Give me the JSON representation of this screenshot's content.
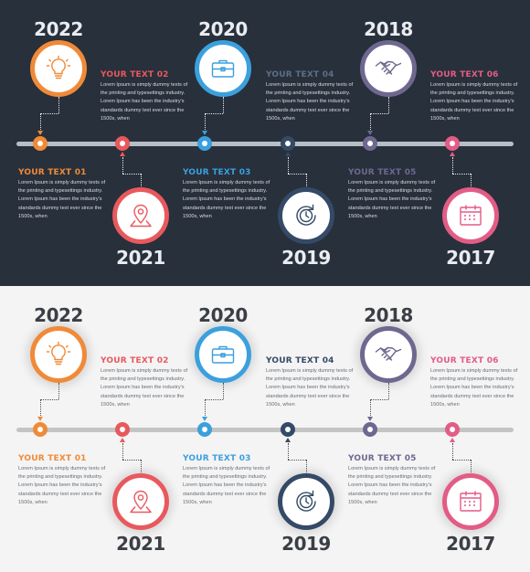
{
  "colors": {
    "orange": "#f08a38",
    "red": "#e8595e",
    "blue": "#3ba0dd",
    "navy": "#344a66",
    "purple": "#6e6890",
    "pink": "#e35c86"
  },
  "body_text": "Lorem Ipsum is simply dummy texts of the printing and typesettings industry. Lorem Ipsum has been the industry's standards dummy text ever since the 1500s, when",
  "milestones": [
    {
      "year": "2022",
      "title": "YOUR TEXT 01",
      "icon": "lightbulb-icon",
      "color": "orange"
    },
    {
      "year": "2021",
      "title": "YOUR TEXT 02",
      "icon": "map-pin-icon",
      "color": "red"
    },
    {
      "year": "2020",
      "title": "YOUR TEXT 03",
      "icon": "briefcase-icon",
      "color": "blue"
    },
    {
      "year": "2019",
      "title": "YOUR TEXT 04",
      "icon": "clock-refresh-icon",
      "color": "navy"
    },
    {
      "year": "2018",
      "title": "YOUR TEXT 05",
      "icon": "handshake-icon",
      "color": "purple"
    },
    {
      "year": "2017",
      "title": "YOUR TEXT 06",
      "icon": "calendar-icon",
      "color": "pink"
    }
  ],
  "panels": [
    {
      "theme": "dark",
      "navy_title_color": "#5d6e86"
    },
    {
      "theme": "light",
      "navy_title_color": "#344a66"
    }
  ]
}
